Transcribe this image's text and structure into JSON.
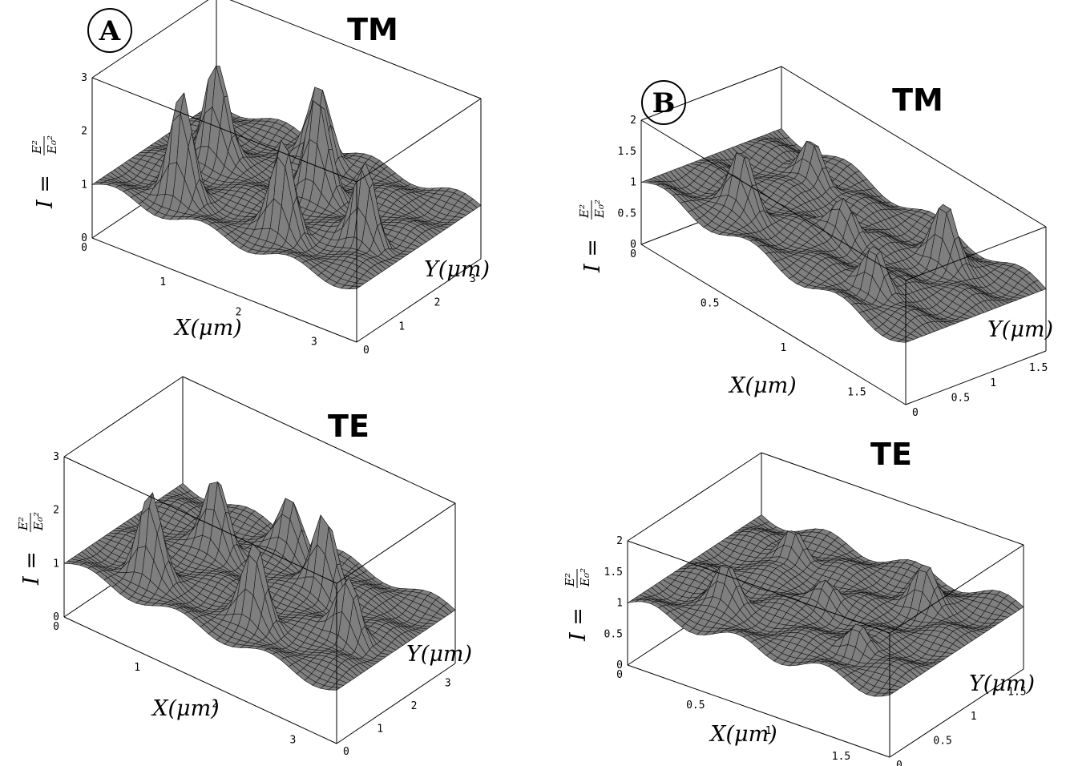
{
  "panel_badges": [
    "A",
    "B"
  ],
  "chart_data": [
    {
      "id": "A-TM",
      "type": "surface",
      "title": "TM",
      "badge": "A",
      "xlabel": "X(μm)",
      "ylabel": "Y(μm)",
      "zlabel": {
        "lhs": "I =",
        "numerator": "E²",
        "denominator": "E₀²"
      },
      "xlim": [
        0,
        3.5
      ],
      "ylim": [
        0,
        3.5
      ],
      "zlim": [
        0,
        3
      ],
      "xticks": [
        "1",
        "2",
        "3"
      ],
      "yticks": [
        "0",
        "1",
        "2",
        "3"
      ],
      "zticks": [
        "0",
        "1",
        "2",
        "3"
      ],
      "x_origin_label": "0",
      "baseline": 1.0,
      "peaks": [
        {
          "x": 0.9,
          "y": 0.6,
          "z": 2.9
        },
        {
          "x": 2.2,
          "y": 0.7,
          "z": 2.7
        },
        {
          "x": 0.7,
          "y": 2.0,
          "z": 2.8
        },
        {
          "x": 2.0,
          "y": 2.1,
          "z": 2.8
        },
        {
          "x": 3.0,
          "y": 1.3,
          "z": 2.6
        },
        {
          "x": 1.6,
          "y": 3.0,
          "z": 2.4
        }
      ]
    },
    {
      "id": "B-TM",
      "type": "surface",
      "title": "TM",
      "badge": "B",
      "xlabel": "X(μm)",
      "ylabel": "Y(μm)",
      "zlabel": {
        "lhs": "I =",
        "numerator": "E²",
        "denominator": "E₀²"
      },
      "xlim": [
        0,
        1.8
      ],
      "ylim": [
        0,
        1.8
      ],
      "zlim": [
        0,
        2
      ],
      "xticks": [
        "0.5",
        "1",
        "1.5"
      ],
      "yticks": [
        "0",
        "0.5",
        "1",
        "1.5"
      ],
      "zticks": [
        "0",
        "0.5",
        "1",
        "1.5",
        "2"
      ],
      "x_origin_label": "0",
      "baseline": 1.0,
      "peaks": [
        {
          "x": 0.45,
          "y": 0.45,
          "z": 1.9
        },
        {
          "x": 1.35,
          "y": 0.45,
          "z": 1.8
        },
        {
          "x": 0.45,
          "y": 1.35,
          "z": 1.8
        },
        {
          "x": 1.35,
          "y": 1.35,
          "z": 1.9
        },
        {
          "x": 0.9,
          "y": 0.9,
          "z": 1.6
        }
      ]
    },
    {
      "id": "A-TE",
      "type": "surface",
      "title": "TE",
      "badge": "",
      "xlabel": "X(μm)",
      "ylabel": "Y(μm)",
      "zlabel": {
        "lhs": "I =",
        "numerator": "E²",
        "denominator": "E₀²"
      },
      "xlim": [
        0,
        3.5
      ],
      "ylim": [
        0,
        3.5
      ],
      "zlim": [
        0,
        3
      ],
      "xticks": [
        "1",
        "2",
        "3"
      ],
      "yticks": [
        "0",
        "1",
        "2",
        "3"
      ],
      "zticks": [
        "0",
        "1",
        "2",
        "3"
      ],
      "x_origin_label": "0",
      "baseline": 1.0,
      "peaks": [
        {
          "x": 0.8,
          "y": 0.7,
          "z": 2.5
        },
        {
          "x": 2.1,
          "y": 0.8,
          "z": 2.4
        },
        {
          "x": 1.0,
          "y": 2.2,
          "z": 2.3
        },
        {
          "x": 2.3,
          "y": 2.4,
          "z": 2.5
        },
        {
          "x": 3.0,
          "y": 1.5,
          "z": 2.2
        },
        {
          "x": 1.6,
          "y": 3.0,
          "z": 2.0
        }
      ]
    },
    {
      "id": "B-TE",
      "type": "surface",
      "title": "TE",
      "badge": "",
      "xlabel": "X(μm)",
      "ylabel": "Y(μm)",
      "zlabel": {
        "lhs": "I =",
        "numerator": "E²",
        "denominator": "E₀²"
      },
      "xlim": [
        0,
        1.8
      ],
      "ylim": [
        0,
        1.8
      ],
      "zlim": [
        0,
        2
      ],
      "xticks": [
        "0.5",
        "1",
        "1.5"
      ],
      "yticks": [
        "0",
        "0.5",
        "1",
        "1.5"
      ],
      "zticks": [
        "0",
        "0.5",
        "1",
        "1.5",
        "2"
      ],
      "x_origin_label": "0",
      "baseline": 1.0,
      "peaks": [
        {
          "x": 0.45,
          "y": 0.45,
          "z": 1.6
        },
        {
          "x": 1.35,
          "y": 0.45,
          "z": 1.5
        },
        {
          "x": 0.45,
          "y": 1.35,
          "z": 1.6
        },
        {
          "x": 1.35,
          "y": 1.35,
          "z": 1.6
        },
        {
          "x": 0.9,
          "y": 0.9,
          "z": 1.4
        }
      ]
    }
  ]
}
